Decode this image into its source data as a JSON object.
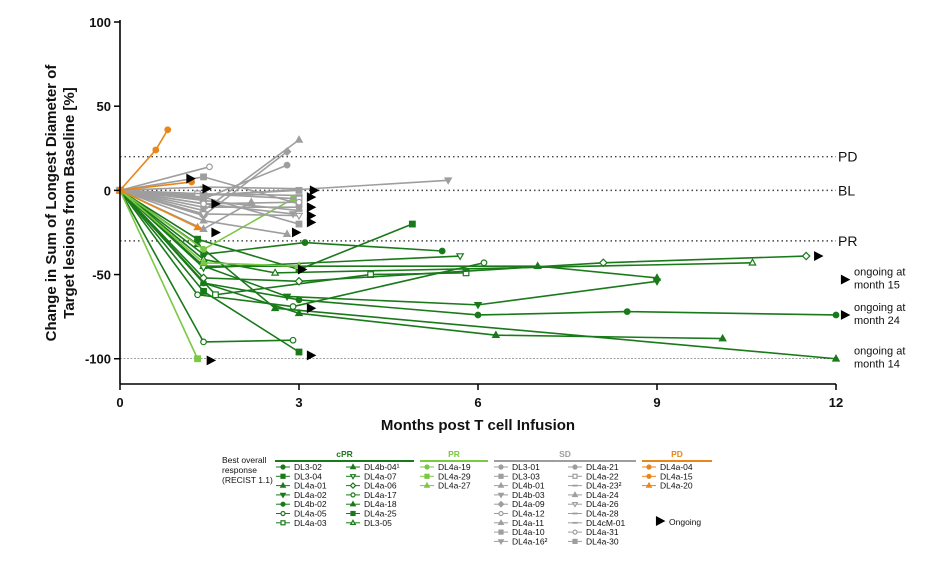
{
  "chart_data": {
    "type": "line",
    "title": "",
    "xlabel": "Months post T cell Infusion",
    "ylabel_lines": [
      "Change in Sum of Longest Diameter of",
      "Target lesions from Baseline [%]"
    ],
    "xlim": [
      0,
      12
    ],
    "ylim": [
      -115,
      100
    ],
    "xticks": [
      0,
      3,
      6,
      9,
      12
    ],
    "yticks": [
      100,
      50,
      0,
      -50,
      -100
    ],
    "reference_lines": [
      {
        "y": 20,
        "label": "PD",
        "style": "dotted"
      },
      {
        "y": 0,
        "label": "BL",
        "style": "dotted"
      },
      {
        "y": -30,
        "label": "PR",
        "style": "dotted"
      },
      {
        "y": -100,
        "label": "",
        "style": "thin"
      }
    ],
    "annotations": [
      {
        "x": 12,
        "y": -53,
        "lines": [
          "ongoing at",
          "month 15"
        ]
      },
      {
        "x": 12,
        "y": -74,
        "lines": [
          "ongoing at",
          "month 24"
        ]
      },
      {
        "x": 12,
        "y": -100,
        "lines": [
          "ongoing at",
          "month 14"
        ]
      }
    ],
    "groups": {
      "cPR": {
        "color": "#1a7a1a"
      },
      "PR": {
        "color": "#7ac943"
      },
      "SD": {
        "color": "#9e9e9e"
      },
      "PD": {
        "color": "#e8861a"
      }
    },
    "series": [
      {
        "name": "DL3-02",
        "group": "cPR",
        "marker": "dot",
        "x": [
          0,
          1.4,
          3.1,
          5.4
        ],
        "y": [
          0,
          -38,
          -31,
          -36
        ]
      },
      {
        "name": "DL3-04",
        "group": "cPR",
        "marker": "square",
        "x": [
          0,
          1.3,
          3.0,
          4.9
        ],
        "y": [
          0,
          -29,
          -47,
          -20
        ]
      },
      {
        "name": "DL4a-01",
        "group": "cPR",
        "marker": "triangle",
        "x": [
          0,
          1.4,
          3.0,
          7.0,
          9.0
        ],
        "y": [
          0,
          -45,
          -45,
          -45,
          -52
        ]
      },
      {
        "name": "DL4a-02",
        "group": "cPR",
        "marker": "tri-down",
        "x": [
          0,
          1.4,
          2.8,
          6.0,
          9.0
        ],
        "y": [
          0,
          -45,
          -63,
          -68,
          -54
        ]
      },
      {
        "name": "DL4b-02",
        "group": "cPR",
        "marker": "dot",
        "x": [
          0,
          1.4,
          3.0,
          6.0,
          8.5,
          12.0
        ],
        "y": [
          0,
          -55,
          -65,
          -74,
          -72,
          -74
        ]
      },
      {
        "name": "DL4a-05",
        "group": "cPR",
        "marker": "circle-open",
        "x": [
          0,
          1.3,
          2.9,
          6.1
        ],
        "y": [
          0,
          -62,
          -69,
          -43
        ]
      },
      {
        "name": "DL4a-03",
        "group": "cPR",
        "marker": "square-open",
        "x": [
          0,
          1.6,
          4.2,
          5.8
        ],
        "y": [
          0,
          -62,
          -50,
          -49
        ]
      },
      {
        "name": "DL4b-04",
        "group": "cPR",
        "marker": "triangle",
        "x": [
          0,
          1.4,
          3.0,
          6.3,
          10.1
        ],
        "y": [
          0,
          -55,
          -73,
          -86,
          -88
        ]
      },
      {
        "name": "DL4a-07",
        "group": "cPR",
        "marker": "tri-down-open",
        "x": [
          0,
          1.4,
          5.7
        ],
        "y": [
          0,
          -46,
          -39
        ]
      },
      {
        "name": "DL4a-06",
        "group": "cPR",
        "marker": "diamond-open",
        "x": [
          0,
          1.4,
          3.0,
          8.1,
          11.5
        ],
        "y": [
          0,
          -52,
          -54,
          -43,
          -39
        ]
      },
      {
        "name": "DL4a-17",
        "group": "cPR",
        "marker": "circle-open",
        "x": [
          0,
          1.4,
          2.9
        ],
        "y": [
          0,
          -90,
          -89
        ]
      },
      {
        "name": "DL4a-18",
        "group": "cPR",
        "marker": "triangle",
        "x": [
          0,
          1.3,
          2.6,
          12.0
        ],
        "y": [
          0,
          -32,
          -70,
          -100
        ]
      },
      {
        "name": "DL4a-25",
        "group": "cPR",
        "marker": "square",
        "x": [
          0,
          1.4,
          3.0
        ],
        "y": [
          0,
          -60,
          -96
        ]
      },
      {
        "name": "DL3-05",
        "group": "cPR",
        "marker": "triangle-open",
        "x": [
          0,
          1.4,
          2.6,
          10.6
        ],
        "y": [
          0,
          -41,
          -49,
          -43
        ]
      },
      {
        "name": "DL4a-19",
        "group": "PR",
        "marker": "dot",
        "x": [
          0,
          1.4,
          2.9
        ],
        "y": [
          0,
          -35,
          -5
        ]
      },
      {
        "name": "DL4a-29",
        "group": "PR",
        "marker": "square",
        "x": [
          0,
          1.3
        ],
        "y": [
          0,
          -100
        ]
      },
      {
        "name": "DL4a-27",
        "group": "PR",
        "marker": "triangle",
        "x": [
          0,
          1.4,
          3.0
        ],
        "y": [
          0,
          -43,
          -45
        ]
      },
      {
        "name": "DL3-01",
        "group": "SD",
        "marker": "dot",
        "x": [
          0,
          1.4,
          2.8
        ],
        "y": [
          0,
          -5,
          15
        ]
      },
      {
        "name": "DL3-03",
        "group": "SD",
        "marker": "square",
        "x": [
          0,
          1.4,
          3.0
        ],
        "y": [
          0,
          -3,
          0
        ]
      },
      {
        "name": "DL4b-01",
        "group": "SD",
        "marker": "triangle",
        "x": [
          0,
          1.4,
          3.0
        ],
        "y": [
          0,
          -12,
          30
        ]
      },
      {
        "name": "DL4b-03",
        "group": "SD",
        "marker": "tri-down",
        "x": [
          0,
          1.4,
          2.9
        ],
        "y": [
          0,
          -8,
          -14
        ]
      },
      {
        "name": "DL4a-09",
        "group": "SD",
        "marker": "diamond",
        "x": [
          0,
          1.4,
          2.8
        ],
        "y": [
          0,
          -15,
          23
        ]
      },
      {
        "name": "DL4a-12",
        "group": "SD",
        "marker": "circle-open",
        "x": [
          0,
          1.5
        ],
        "y": [
          0,
          14
        ]
      },
      {
        "name": "DL4a-11",
        "group": "SD",
        "marker": "triangle",
        "x": [
          0,
          1.4,
          2.2
        ],
        "y": [
          0,
          -23,
          -7
        ]
      },
      {
        "name": "DL4a-10",
        "group": "SD",
        "marker": "square",
        "x": [
          0,
          1.4,
          3.0
        ],
        "y": [
          0,
          8,
          -8
        ]
      },
      {
        "name": "DL4a-16",
        "group": "SD",
        "marker": "tri-down",
        "x": [
          0,
          1.4,
          5.5
        ],
        "y": [
          0,
          -3,
          6
        ]
      },
      {
        "name": "DL4a-21",
        "group": "SD",
        "marker": "dot",
        "x": [
          0,
          1.4,
          3.0
        ],
        "y": [
          0,
          -10,
          -10
        ]
      },
      {
        "name": "DL4a-22",
        "group": "SD",
        "marker": "square-open",
        "x": [
          0,
          1.3,
          3.0
        ],
        "y": [
          0,
          -2,
          -5
        ]
      },
      {
        "name": "DL4a-23",
        "group": "SD",
        "marker": "dash",
        "x": [
          0,
          1.4,
          3.0
        ],
        "y": [
          0,
          -6,
          -12
        ]
      },
      {
        "name": "DL4a-24",
        "group": "SD",
        "marker": "triangle",
        "x": [
          0,
          1.4,
          2.8
        ],
        "y": [
          0,
          -18,
          -26
        ]
      },
      {
        "name": "DL4a-26",
        "group": "SD",
        "marker": "tri-down-open",
        "x": [
          0,
          1.4,
          3.0
        ],
        "y": [
          0,
          -14,
          -15
        ]
      },
      {
        "name": "DL4a-28",
        "group": "SD",
        "marker": "dash",
        "x": [
          0,
          1.4,
          3.0
        ],
        "y": [
          0,
          -2,
          -3
        ]
      },
      {
        "name": "DL4cM-01",
        "group": "SD",
        "marker": "dash",
        "x": [
          0,
          1.4,
          3.0
        ],
        "y": [
          0,
          2,
          1
        ]
      },
      {
        "name": "DL4a-31",
        "group": "SD",
        "marker": "circle-open",
        "x": [
          0,
          1.4,
          3.0
        ],
        "y": [
          0,
          -8,
          -7
        ]
      },
      {
        "name": "DL4a-30",
        "group": "SD",
        "marker": "square",
        "x": [
          0,
          1.4,
          3.0
        ],
        "y": [
          0,
          -4,
          -20
        ]
      },
      {
        "name": "DL4a-04",
        "group": "PD",
        "marker": "dot",
        "x": [
          0,
          0.6,
          0.8
        ],
        "y": [
          0,
          24,
          36
        ]
      },
      {
        "name": "DL4a-15",
        "group": "PD",
        "marker": "dot",
        "x": [
          0,
          1.2
        ],
        "y": [
          0,
          5
        ]
      },
      {
        "name": "DL4a-20",
        "group": "PD",
        "marker": "triangle",
        "x": [
          0,
          1.3
        ],
        "y": [
          0,
          -22
        ]
      }
    ],
    "ongoing_markers": [
      {
        "x": 1.18,
        "y": 7
      },
      {
        "x": 1.45,
        "y": 1
      },
      {
        "x": 1.6,
        "y": -8
      },
      {
        "x": 1.6,
        "y": -25
      },
      {
        "x": 1.52,
        "y": -101
      },
      {
        "x": 2.95,
        "y": -25
      },
      {
        "x": 3.25,
        "y": 0
      },
      {
        "x": 3.2,
        "y": -4
      },
      {
        "x": 3.2,
        "y": -10
      },
      {
        "x": 3.2,
        "y": -15
      },
      {
        "x": 3.2,
        "y": -19
      },
      {
        "x": 3.05,
        "y": -47
      },
      {
        "x": 3.2,
        "y": -70
      },
      {
        "x": 3.2,
        "y": -98
      },
      {
        "x": 11.7,
        "y": -39
      },
      {
        "x": 12.15,
        "y": -53
      },
      {
        "x": 12.15,
        "y": -74
      }
    ],
    "legend": {
      "title_lines": [
        "Best overall",
        "response",
        "(RECIST 1.1)"
      ],
      "ongoing_label": "Ongoing",
      "columns": [
        {
          "group": "cPR",
          "header": "cPR",
          "items": [
            "DL3-02",
            "DL3-04",
            "DL4a-01",
            "DL4a-02",
            "DL4b-02",
            "DL4a-05",
            "DL4a-03"
          ]
        },
        {
          "group": "cPR",
          "header": "",
          "items": [
            "DL4b-04¹",
            "DL4a-07",
            "DL4a-06",
            "DL4a-17",
            "DL4a-18",
            "DL4a-25",
            "DL3-05"
          ]
        },
        {
          "group": "PR",
          "header": "PR",
          "items": [
            "DL4a-19",
            "DL4a-29",
            "DL4a-27"
          ]
        },
        {
          "group": "SD",
          "header": "SD",
          "items": [
            "DL3-01",
            "DL3-03",
            "DL4b-01",
            "DL4b-03",
            "DL4a-09",
            "DL4a-12",
            "DL4a-11",
            "DL4a-10",
            "DL4a-16²"
          ]
        },
        {
          "group": "SD",
          "header": "",
          "items": [
            "DL4a-21",
            "DL4a-22",
            "DL4a-23²",
            "DL4a-24",
            "DL4a-26",
            "DL4a-28",
            "DL4cM-01",
            "DL4a-31",
            "DL4a-30"
          ]
        },
        {
          "group": "PD",
          "header": "PD",
          "items": [
            "DL4a-04",
            "DL4a-15",
            "DL4a-20"
          ]
        }
      ]
    }
  }
}
